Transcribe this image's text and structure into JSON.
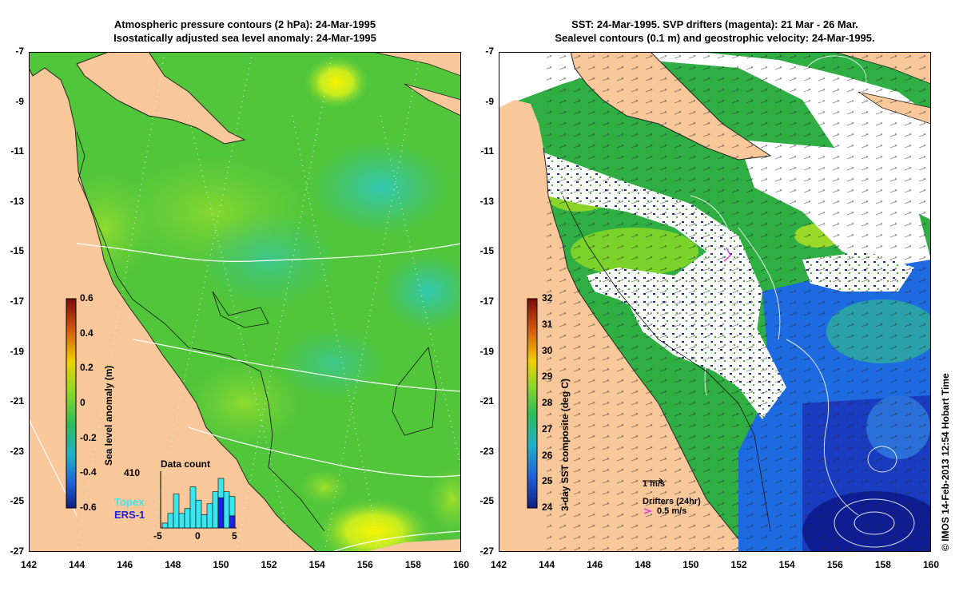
{
  "left_panel": {
    "title_line1": "Atmospheric pressure contours (2 hPa): 24-Mar-1995",
    "title_line2": "Isostatically adjusted sea level anomaly: 24-Mar-1995",
    "colorbar_label": "Sea level anomaly (m)",
    "colorbar_ticks": [
      "0.6",
      "0.4",
      "0.2",
      "0",
      "-0.2",
      "-0.4",
      "-0.6"
    ],
    "histogram": {
      "title": "Data count",
      "max_count": "410",
      "x_ticks": [
        "-5",
        "0",
        "5"
      ],
      "topex_counts": [
        40,
        120,
        280,
        120,
        160,
        340,
        230,
        110,
        200,
        300,
        410,
        300,
        260
      ],
      "ers1_counts": [
        0,
        0,
        0,
        0,
        0,
        0,
        0,
        0,
        0,
        0,
        250,
        0,
        100
      ]
    },
    "legend_topex": "Topex",
    "legend_ers1": "ERS-1"
  },
  "right_panel": {
    "title_line1": "SST: 24-Mar-1995. SVP drifters (magenta): 21 Mar - 26 Mar.",
    "title_line2": "Sealevel contours (0.1 m) and geostrophic velocity: 24-Mar-1995.",
    "colorbar_label": "3-day SST composite (deg C)",
    "colorbar_ticks": [
      "32",
      "31",
      "30",
      "29",
      "28",
      "27",
      "26",
      "25",
      "24"
    ],
    "velocity_scale_label": "1 m/s",
    "drifters_label": "Drifters (24hr)",
    "drifters_scale_label": "0.5 m/s"
  },
  "axes": {
    "y_ticks": [
      "-7",
      "-9",
      "-11",
      "-13",
      "-15",
      "-17",
      "-19",
      "-21",
      "-23",
      "-25",
      "-27"
    ],
    "x_ticks": [
      "142",
      "144",
      "146",
      "148",
      "150",
      "152",
      "154",
      "156",
      "158",
      "160"
    ]
  },
  "credit": "© IMOS 14-Feb-2013 12:54 Hobart Time",
  "colors": {
    "land": "#f8c89a",
    "ocean_green": "#39c23c",
    "sst_blue": "#1e5adc",
    "sst_dark_blue": "#0a1f9a",
    "cloud_white": "#ffffff",
    "drifter_magenta": "#e040e0"
  }
}
